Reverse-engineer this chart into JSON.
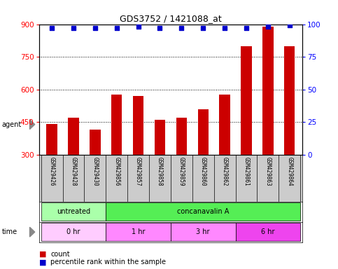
{
  "title": "GDS3752 / 1421088_at",
  "samples": [
    "GSM429426",
    "GSM429428",
    "GSM429430",
    "GSM429856",
    "GSM429857",
    "GSM429858",
    "GSM429859",
    "GSM429860",
    "GSM429862",
    "GSM429861",
    "GSM429863",
    "GSM429864"
  ],
  "bar_values": [
    440,
    470,
    415,
    575,
    570,
    460,
    470,
    510,
    575,
    800,
    890,
    800
  ],
  "percentile_values": [
    97,
    97,
    97,
    97,
    98,
    97,
    97,
    97,
    97,
    97,
    98,
    99
  ],
  "bar_color": "#cc0000",
  "dot_color": "#0000cc",
  "ylim_left": [
    300,
    900
  ],
  "ylim_right": [
    0,
    100
  ],
  "yticks_left": [
    300,
    450,
    600,
    750,
    900
  ],
  "yticks_right": [
    0,
    25,
    50,
    75,
    100
  ],
  "agent_row": [
    {
      "label": "untreated",
      "start": 0,
      "end": 3,
      "color": "#aaffaa"
    },
    {
      "label": "concanavalin A",
      "start": 3,
      "end": 12,
      "color": "#55ee55"
    }
  ],
  "time_row": [
    {
      "label": "0 hr",
      "start": 0,
      "end": 3,
      "color": "#ffccff"
    },
    {
      "label": "1 hr",
      "start": 3,
      "end": 6,
      "color": "#ff88ff"
    },
    {
      "label": "3 hr",
      "start": 6,
      "end": 9,
      "color": "#ff88ff"
    },
    {
      "label": "6 hr",
      "start": 9,
      "end": 12,
      "color": "#ee44ee"
    }
  ],
  "labels_bg": "#cccccc",
  "background_color": "#ffffff"
}
